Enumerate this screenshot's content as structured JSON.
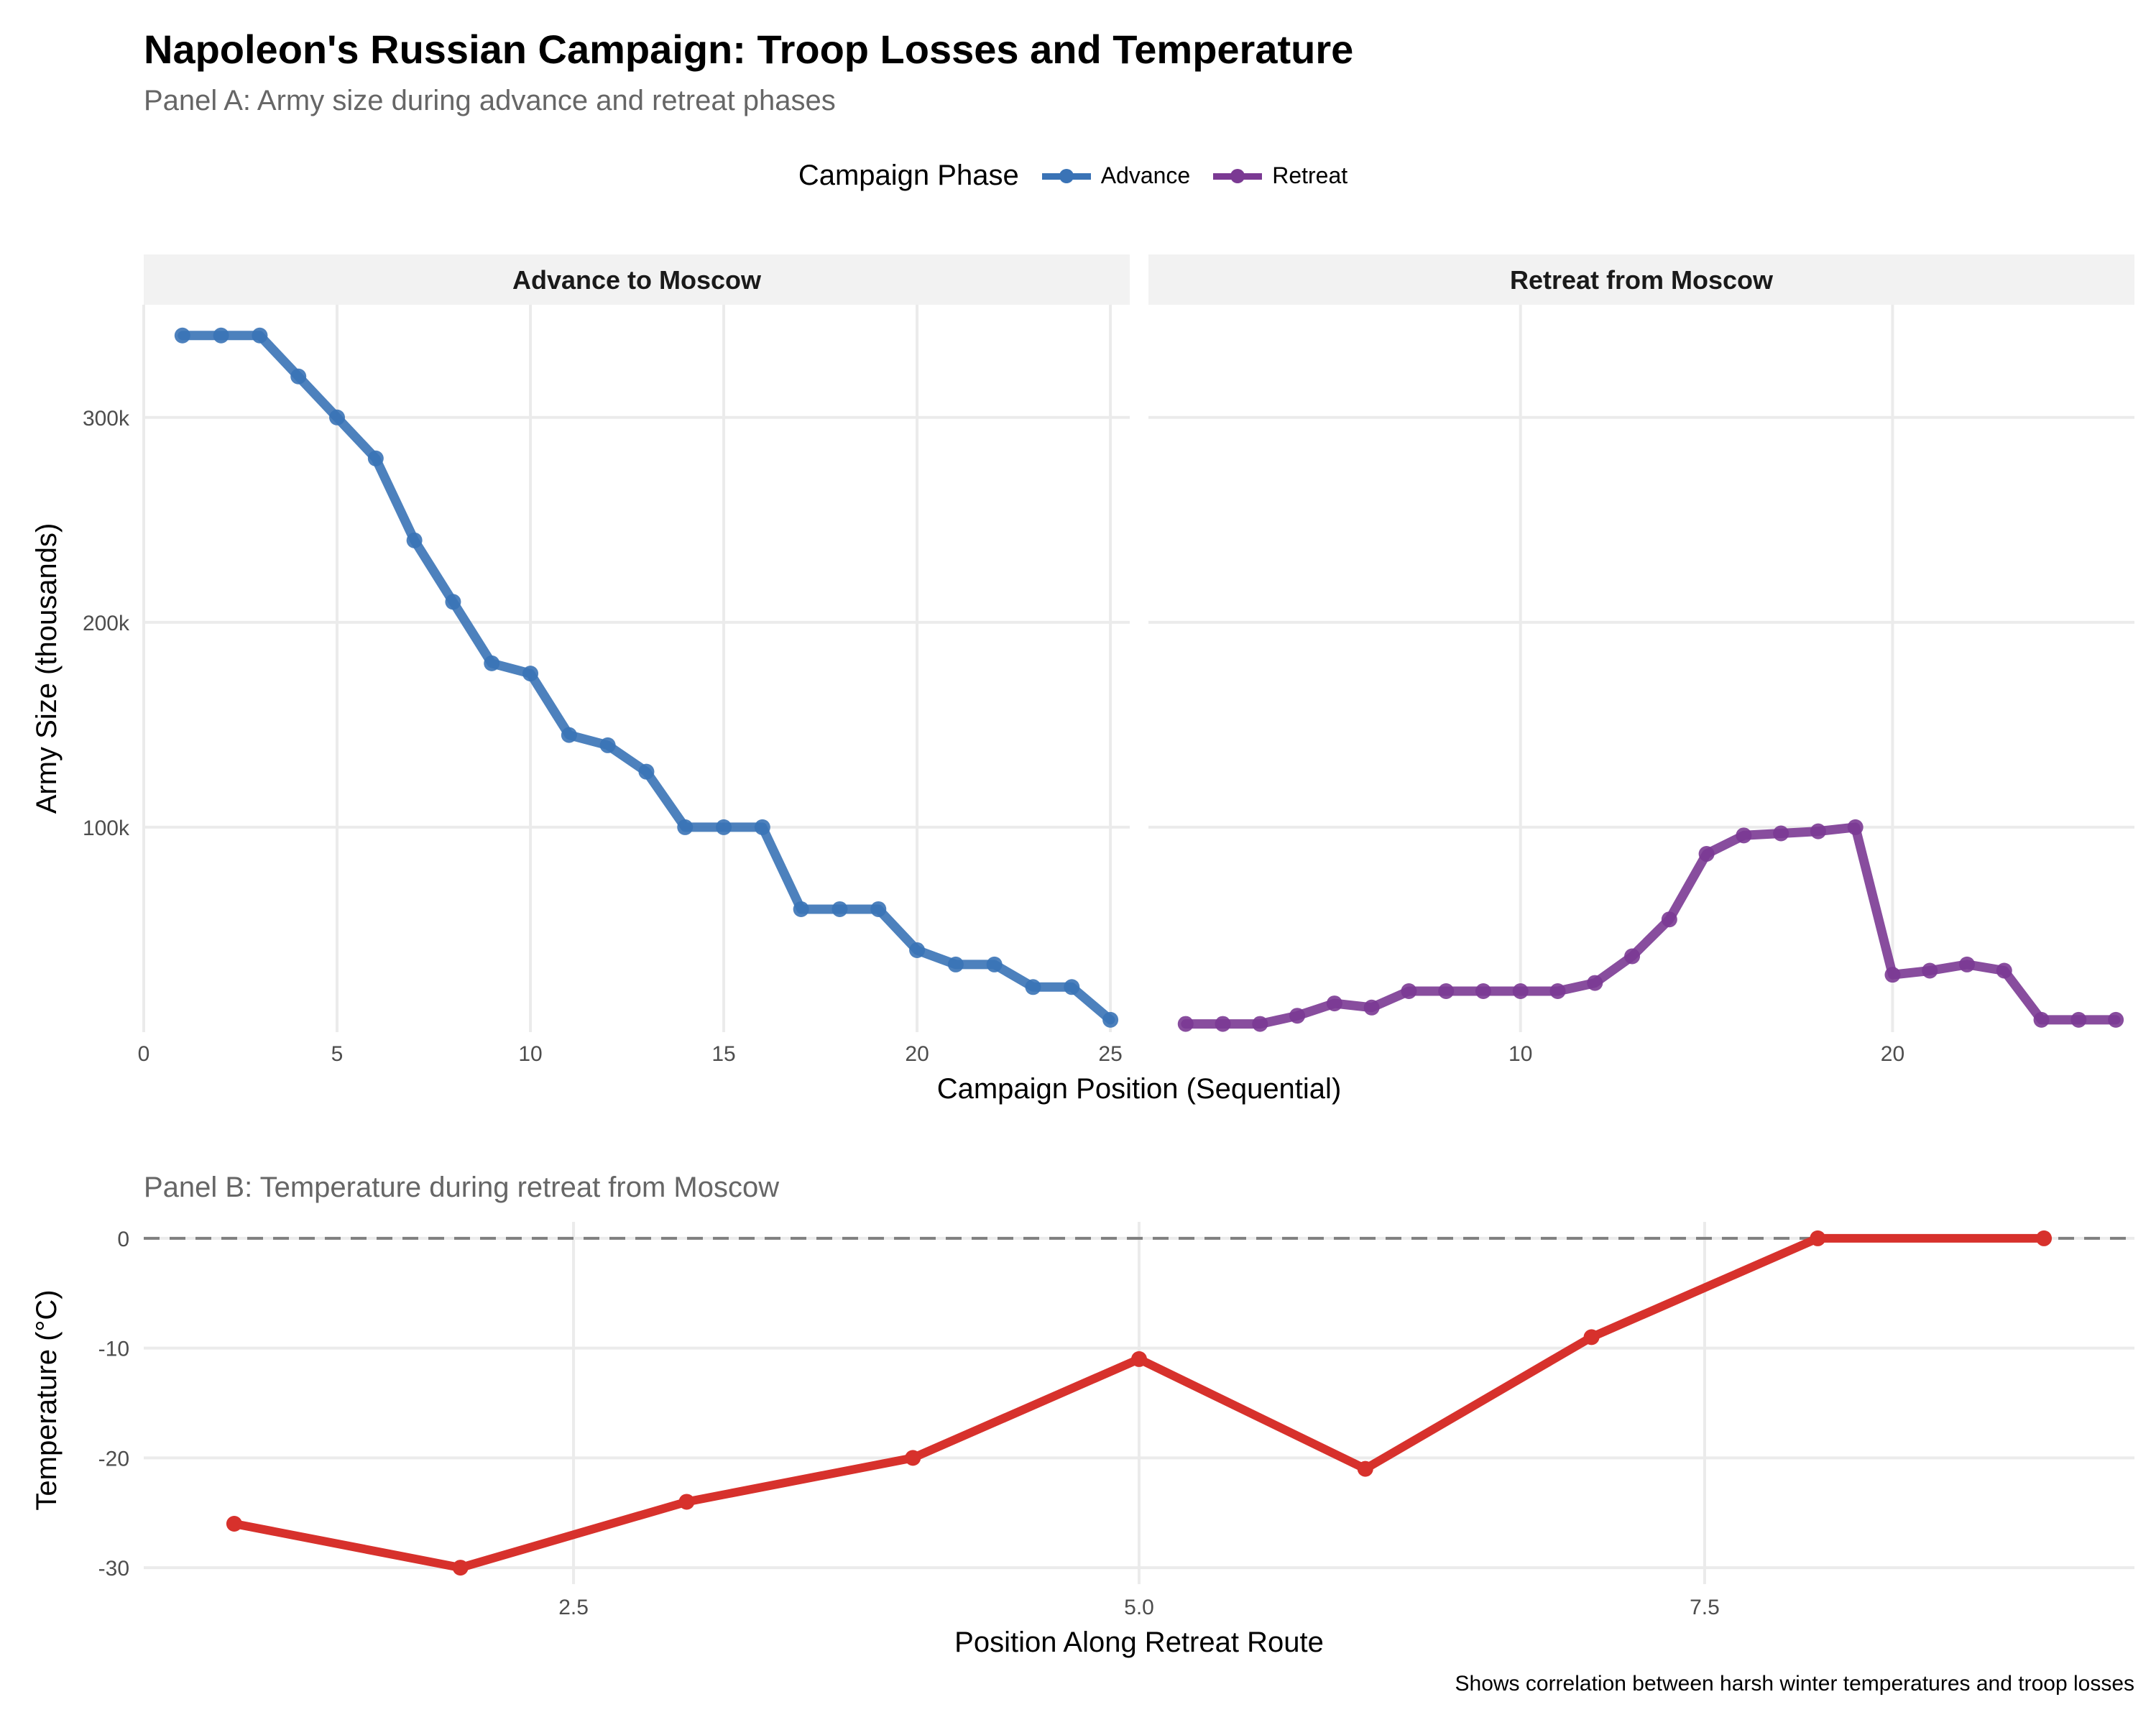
{
  "title": "Napoleon's Russian Campaign: Troop Losses and Temperature",
  "subtitle": "Panel A: Army size during advance and retreat phases",
  "legend": {
    "title": "Campaign Phase",
    "items": [
      {
        "label": "Advance",
        "color": "#3a73b6"
      },
      {
        "label": "Retreat",
        "color": "#7b3a93"
      }
    ]
  },
  "panel_b_subtitle": "Panel B: Temperature during retreat from Moscow",
  "caption": "Shows correlation between harsh winter temperatures and troop losses",
  "chart_data": [
    {
      "type": "line",
      "id": "panel-a",
      "facets": [
        {
          "label": "Advance to Moscow",
          "color": "#3a73b6",
          "x": [
            1,
            2,
            3,
            4,
            5,
            6,
            7,
            8,
            9,
            10,
            11,
            12,
            13,
            14,
            15,
            16,
            17,
            18,
            19,
            20,
            21,
            22,
            23,
            24,
            25
          ],
          "values": [
            340000,
            340000,
            340000,
            320000,
            300000,
            280000,
            240000,
            210000,
            180000,
            175000,
            145000,
            140000,
            127100,
            100000,
            100000,
            100000,
            60000,
            60000,
            60000,
            40000,
            33000,
            33000,
            22000,
            22000,
            6000
          ],
          "xticks": [
            0,
            5,
            10,
            15,
            20,
            25
          ],
          "xlim": [
            0,
            25.5
          ]
        },
        {
          "label": "Retreat from Moscow",
          "color": "#7b3a93",
          "x": [
            1,
            2,
            3,
            4,
            5,
            6,
            7,
            8,
            9,
            10,
            11,
            12,
            13,
            14,
            15,
            16,
            17,
            18,
            19,
            20,
            21,
            22,
            23,
            24,
            25,
            26
          ],
          "values": [
            4000,
            4000,
            4000,
            8000,
            14000,
            12000,
            20000,
            20000,
            20000,
            20000,
            20000,
            24000,
            37000,
            55000,
            87000,
            96000,
            97000,
            98000,
            100000,
            28000,
            30000,
            33000,
            30000,
            6000,
            6000,
            6000
          ],
          "xticks": [
            10,
            20
          ],
          "xlim": [
            0,
            26.5
          ]
        }
      ],
      "xlabel": "Campaign Position (Sequential)",
      "ylabel": "Army Size (thousands)",
      "yticks": [
        100000,
        200000,
        300000
      ],
      "ytick_labels": [
        "100k",
        "200k",
        "300k"
      ],
      "ylim": [
        0,
        355000
      ]
    },
    {
      "type": "line",
      "id": "panel-b",
      "color": "#d7312c",
      "x": [
        1,
        2,
        3,
        4,
        5,
        6,
        7,
        8,
        9
      ],
      "values": [
        -26,
        -30,
        -24,
        -20,
        -11,
        -21,
        -9,
        0,
        0
      ],
      "xticks": [
        2.5,
        5.0,
        7.5
      ],
      "xtick_labels": [
        "2.5",
        "5.0",
        "7.5"
      ],
      "yticks": [
        0,
        -10,
        -20,
        -30
      ],
      "ytick_labels": [
        "0",
        "-10",
        "-20",
        "-30"
      ],
      "xlim": [
        0.6,
        9.4
      ],
      "ylim": [
        -31.5,
        1.5
      ],
      "reference_line": 0,
      "xlabel": "Position Along Retreat Route",
      "ylabel": "Temperature (°C)"
    }
  ]
}
